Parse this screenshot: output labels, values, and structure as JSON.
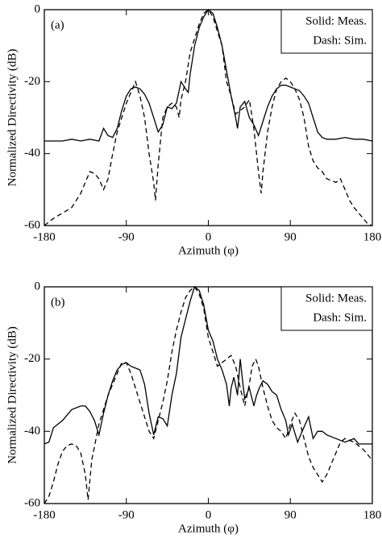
{
  "chart_data": [
    {
      "type": "line",
      "label": "(a)",
      "xlabel": "Azimuth (φ)",
      "ylabel": "Normalized Directivity (dB)",
      "xlim": [
        -180,
        180
      ],
      "xticks": [
        -180,
        -90,
        0,
        90,
        180
      ],
      "ylim": [
        -60,
        0
      ],
      "yticks": [
        0,
        -20,
        -40,
        -60
      ],
      "series": [
        {
          "name": "Solid: Meas.",
          "color": "#000000",
          "dash": "solid",
          "x": [
            -180,
            -160,
            -150,
            -140,
            -130,
            -120,
            -115,
            -110,
            -105,
            -100,
            -95,
            -90,
            -85,
            -80,
            -75,
            -70,
            -65,
            -60,
            -55,
            -50,
            -45,
            -40,
            -35,
            -30,
            -25,
            -22,
            -20,
            -15,
            -10,
            -5,
            0,
            5,
            10,
            15,
            20,
            25,
            30,
            32,
            35,
            40,
            45,
            50,
            55,
            60,
            65,
            70,
            75,
            80,
            85,
            90,
            95,
            100,
            105,
            110,
            115,
            120,
            125,
            130,
            140,
            150,
            160,
            170,
            180
          ],
          "values": [
            -36.5,
            -36.5,
            -36,
            -36.5,
            -36,
            -36.5,
            -33,
            -35,
            -35.5,
            -33,
            -28,
            -24,
            -22,
            -21.5,
            -22,
            -23.5,
            -26,
            -30,
            -34,
            -32,
            -27,
            -27.5,
            -26,
            -20,
            -22,
            -23,
            -18,
            -10,
            -5,
            -2,
            0,
            -1,
            -5,
            -10,
            -17,
            -24,
            -30,
            -33,
            -27,
            -25.5,
            -30,
            -32,
            -35,
            -31,
            -27,
            -24,
            -22,
            -21,
            -21,
            -21.5,
            -22,
            -22.5,
            -24,
            -26,
            -30,
            -34,
            -35.5,
            -36,
            -36,
            -35.5,
            -36,
            -36,
            -36.5
          ]
        },
        {
          "name": "Dash: Sim.",
          "color": "#000000",
          "dash": "dashed",
          "x": [
            -180,
            -170,
            -160,
            -150,
            -140,
            -130,
            -125,
            -120,
            -115,
            -110,
            -105,
            -100,
            -95,
            -90,
            -85,
            -80,
            -75,
            -70,
            -65,
            -60,
            -58,
            -55,
            -50,
            -45,
            -40,
            -35,
            -32,
            -30,
            -25,
            -20,
            -15,
            -10,
            -5,
            0,
            5,
            10,
            15,
            20,
            25,
            30,
            35,
            40,
            45,
            50,
            55,
            58,
            60,
            65,
            70,
            75,
            80,
            85,
            90,
            95,
            100,
            105,
            110,
            115,
            120,
            125,
            130,
            140,
            145,
            150,
            155,
            160,
            165,
            170,
            175,
            180
          ],
          "values": [
            -60,
            -58,
            -56.5,
            -55,
            -51,
            -45,
            -45.5,
            -47,
            -50,
            -47,
            -40,
            -34,
            -30,
            -26,
            -23,
            -20,
            -24,
            -30,
            -40,
            -48,
            -53,
            -43,
            -30,
            -27,
            -26,
            -27,
            -30,
            -25,
            -20,
            -12,
            -8,
            -4,
            -1,
            0,
            -2,
            -6,
            -10,
            -20,
            -24,
            -29,
            -28,
            -27,
            -25,
            -33,
            -45,
            -51,
            -45,
            -34,
            -27,
            -22,
            -20,
            -19,
            -20,
            -22,
            -25,
            -30,
            -38,
            -42,
            -44,
            -45,
            -47,
            -48,
            -47,
            -50,
            -53,
            -55,
            -56.5,
            -58,
            -59.5,
            -60
          ]
        }
      ]
    },
    {
      "type": "line",
      "label": "(b)",
      "xlabel": "Azimuth (φ)",
      "ylabel": "Normalized Directivity (dB)",
      "xlim": [
        -180,
        180
      ],
      "xticks": [
        -180,
        -90,
        0,
        90,
        180
      ],
      "ylim": [
        -60,
        0
      ],
      "yticks": [
        0,
        -20,
        -40,
        -60
      ],
      "series": [
        {
          "name": "Solid: Meas.",
          "color": "#000000",
          "dash": "solid",
          "x": [
            -180,
            -175,
            -170,
            -160,
            -150,
            -140,
            -135,
            -130,
            -125,
            -120,
            -115,
            -110,
            -105,
            -100,
            -95,
            -90,
            -85,
            -80,
            -75,
            -70,
            -65,
            -60,
            -55,
            -50,
            -45,
            -40,
            -35,
            -30,
            -25,
            -20,
            -15,
            -10,
            -5,
            0,
            5,
            10,
            15,
            20,
            23,
            25,
            28,
            32,
            35,
            38,
            40,
            45,
            50,
            53,
            56,
            60,
            65,
            70,
            75,
            80,
            85,
            88,
            92,
            98,
            103,
            110,
            115,
            120,
            125,
            130,
            140,
            150,
            160,
            165,
            180
          ],
          "values": [
            -43.5,
            -43,
            -39,
            -37,
            -34,
            -33,
            -33,
            -34.5,
            -37,
            -41,
            -35,
            -30,
            -26,
            -23,
            -21.5,
            -21,
            -22,
            -22.5,
            -23,
            -27,
            -35,
            -41,
            -36,
            -36.5,
            -38.5,
            -30,
            -24,
            -14,
            -9,
            -4,
            0,
            -1,
            -5,
            -12,
            -15,
            -20,
            -23,
            -27,
            -33,
            -28,
            -25,
            -30,
            -20,
            -27,
            -31,
            -28,
            -33,
            -30,
            -28,
            -26,
            -27,
            -29,
            -30,
            -34,
            -37,
            -41,
            -38,
            -43,
            -40,
            -36,
            -42,
            -40,
            -40,
            -41,
            -42,
            -43,
            -42,
            -43.5,
            -43.5
          ]
        },
        {
          "name": "Dash: Sim.",
          "color": "#000000",
          "dash": "dashed",
          "x": [
            -180,
            -175,
            -170,
            -165,
            -160,
            -155,
            -150,
            -145,
            -140,
            -135,
            -132,
            -128,
            -120,
            -110,
            -100,
            -95,
            -90,
            -85,
            -80,
            -75,
            -70,
            -65,
            -60,
            -55,
            -50,
            -45,
            -40,
            -35,
            -30,
            -25,
            -20,
            -15,
            -10,
            -5,
            0,
            5,
            10,
            15,
            20,
            25,
            30,
            35,
            40,
            45,
            48,
            52,
            55,
            60,
            65,
            70,
            75,
            80,
            85,
            90,
            95,
            100,
            105,
            110,
            115,
            120,
            125,
            130,
            135,
            140,
            145,
            150,
            160,
            170,
            180
          ],
          "values": [
            -60,
            -58,
            -54,
            -49,
            -45.5,
            -44,
            -43.5,
            -44,
            -46,
            -52,
            -59,
            -48,
            -38,
            -30,
            -24,
            -21,
            -21,
            -24,
            -28,
            -32,
            -36,
            -40,
            -42,
            -37,
            -32,
            -26,
            -18,
            -12,
            -7,
            -3,
            -1,
            0,
            -2,
            -6,
            -14,
            -18,
            -22,
            -21,
            -20,
            -19,
            -22,
            -28,
            -33,
            -27,
            -22,
            -20,
            -22,
            -28,
            -33,
            -37,
            -39,
            -40,
            -42,
            -38,
            -35,
            -37,
            -42,
            -47,
            -50,
            -52,
            -54,
            -52,
            -49,
            -46,
            -43,
            -42,
            -43,
            -45,
            -48
          ]
        }
      ]
    }
  ]
}
